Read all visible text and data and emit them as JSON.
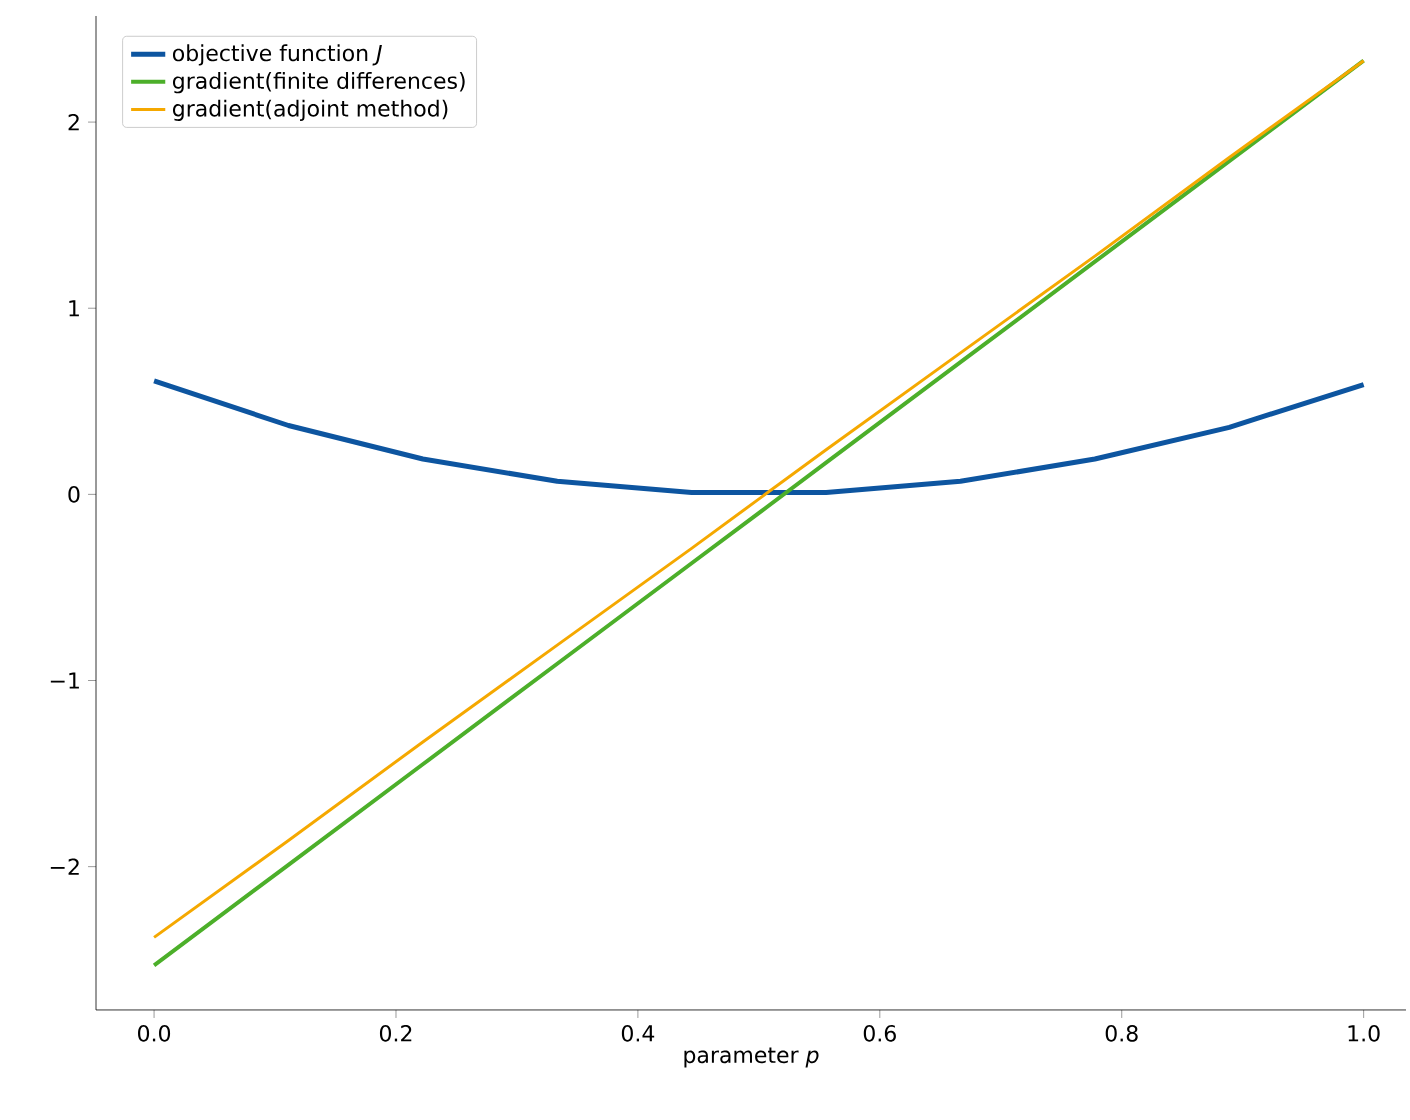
{
  "chart_data": {
    "type": "line",
    "xlabel": "parameter *p*",
    "x": [
      0,
      0.1111,
      0.2222,
      0.3333,
      0.4444,
      0.5556,
      0.6667,
      0.7778,
      0.8889,
      1.0
    ],
    "series": [
      {
        "name": "objective function *J*",
        "color": "#0d55a0",
        "values": [
          0.61,
          0.37,
          0.19,
          0.07,
          0.01,
          0.01,
          0.07,
          0.19,
          0.36,
          0.59
        ]
      },
      {
        "name": "gradient(finite differences)",
        "color": "#4caf2a",
        "values": [
          -2.53,
          -1.99,
          -1.45,
          -0.91,
          -0.37,
          0.17,
          0.71,
          1.25,
          1.79,
          2.33
        ]
      },
      {
        "name": "gradient(adjoint method)",
        "color": "#f5a800",
        "values": [
          -2.38,
          -1.86,
          -1.33,
          -0.81,
          -0.29,
          0.24,
          0.76,
          1.28,
          1.81,
          2.33
        ]
      }
    ],
    "xlim": [
      -0.048,
      1.035
    ],
    "ylim": [
      -2.77,
      2.57
    ],
    "xticks": [
      {
        "value": 0,
        "label": "0.0"
      },
      {
        "value": 0.2,
        "label": "0.2"
      },
      {
        "value": 0.4,
        "label": "0.4"
      },
      {
        "value": 0.6,
        "label": "0.6"
      },
      {
        "value": 0.8,
        "label": "0.8"
      },
      {
        "value": 1.0,
        "label": "1.0"
      }
    ],
    "yticks": [
      {
        "value": -2,
        "label": "−2"
      },
      {
        "value": -1,
        "label": "−1"
      },
      {
        "value": 0,
        "label": "0"
      },
      {
        "value": 1,
        "label": "1"
      },
      {
        "value": 2,
        "label": "2"
      }
    ],
    "legend": "top left",
    "grid": false,
    "marker": "none",
    "line_style": "solid"
  }
}
